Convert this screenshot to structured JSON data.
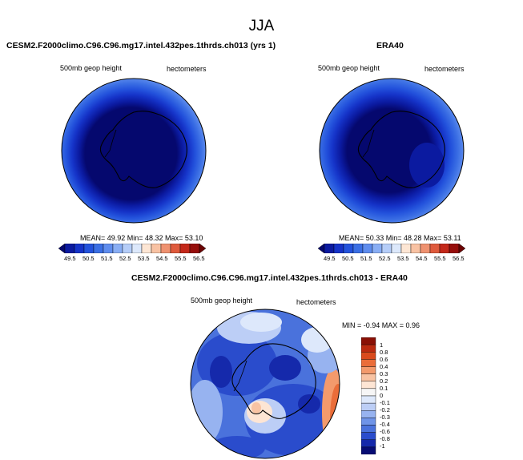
{
  "season": "JJA",
  "panel_left": {
    "title": "CESM2.F2000climo.C96.C96.mg17.intel.432pes.1thrds.ch013 (yrs 1)",
    "variable": "500mb geop height",
    "units": "hectometers",
    "stats": "MEAN= 49.92 Min= 48.32 Max= 53.10"
  },
  "panel_right": {
    "title": "ERA40",
    "variable": "500mb geop height",
    "units": "hectometers",
    "stats": "MEAN= 50.33 Min= 48.28 Max= 53.11"
  },
  "panel_diff": {
    "title": "CESM2.F2000climo.C96.C96.mg17.intel.432pes.1thrds.ch013 - ERA40",
    "variable": "500mb geop height",
    "units": "hectometers",
    "stats": "MIN = -0.94 MAX = 0.96"
  },
  "top_colorbar": {
    "ticks": [
      "49.5",
      "50.5",
      "51.5",
      "52.5",
      "53.5",
      "54.5",
      "55.5",
      "56.5"
    ],
    "colors": [
      "#05086e",
      "#0b1aa0",
      "#1533c8",
      "#2352dc",
      "#3b6fe4",
      "#5f8dee",
      "#89aef4",
      "#b5cdf8",
      "#dce8fb",
      "#fde6d4",
      "#f8c2a3",
      "#ef9270",
      "#df5a3c",
      "#c4281a",
      "#960d0a",
      "#6a0303"
    ]
  },
  "diff_colorbar": {
    "ticks": [
      "1",
      "0.8",
      "0.6",
      "0.4",
      "0.3",
      "0.2",
      "0.1",
      "0",
      "-0.1",
      "-0.2",
      "-0.3",
      "-0.4",
      "-0.6",
      "-0.8",
      "-1"
    ],
    "colors": [
      "#8a1005",
      "#bb2a0f",
      "#d94a1c",
      "#ea6d39",
      "#f39a6c",
      "#f8c3a3",
      "#fde5d4",
      "#f6f6f6",
      "#dde8fb",
      "#bccef6",
      "#97b3f0",
      "#6f94e8",
      "#4a72dc",
      "#2a4ccc",
      "#1529ab",
      "#070c74"
    ]
  }
}
